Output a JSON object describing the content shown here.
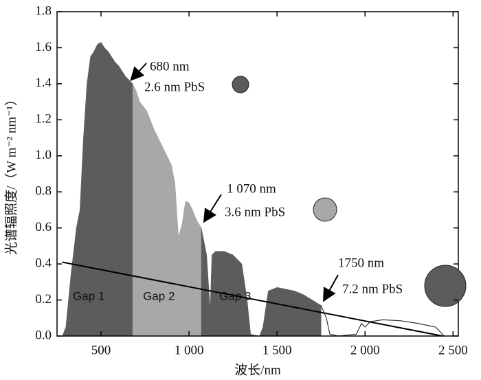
{
  "chart_data": {
    "type": "area",
    "xlabel": "波长/nm",
    "ylabel": "光谱辐照度/（W m⁻² nm⁻¹）",
    "xlim": [
      250,
      2530
    ],
    "ylim": [
      0,
      1.8
    ],
    "xticks": [
      500,
      {
        "value": 1000,
        "label": "1 000"
      },
      {
        "value": 1500,
        "label": "1 500"
      },
      {
        "value": 2000,
        "label": "2 000"
      },
      {
        "value": 2500,
        "label": "2 500"
      }
    ],
    "yticks": [
      {
        "value": 0,
        "label": "0.0"
      },
      0.2,
      0.4,
      0.6,
      0.8,
      {
        "value": 1,
        "label": "1.0"
      },
      1.2,
      1.4,
      1.6,
      1.8
    ],
    "series": [
      {
        "name": "Gap 1",
        "color": "#5c5c5c",
        "x": [
          280,
          300,
          330,
          360,
          380,
          400,
          420,
          440,
          460,
          480,
          500,
          520,
          540,
          560,
          580,
          600,
          620,
          640,
          660,
          680
        ],
        "values": [
          0,
          0.05,
          0.35,
          0.6,
          0.7,
          1.1,
          1.4,
          1.55,
          1.58,
          1.62,
          1.63,
          1.6,
          1.58,
          1.55,
          1.52,
          1.5,
          1.47,
          1.44,
          1.42,
          1.4
        ]
      },
      {
        "name": "Gap 2",
        "color": "#a8a8a8",
        "x": [
          680,
          700,
          720,
          760,
          800,
          850,
          900,
          920,
          940,
          960,
          980,
          1000,
          1020,
          1040,
          1070
        ],
        "values": [
          1.4,
          1.36,
          1.3,
          1.25,
          1.15,
          1.05,
          0.95,
          0.85,
          0.55,
          0.62,
          0.75,
          0.74,
          0.7,
          0.65,
          0.6
        ]
      },
      {
        "name": "Gap 3",
        "color": "#5c5c5c",
        "x": [
          1070,
          1100,
          1120,
          1130,
          1150,
          1200,
          1250,
          1300,
          1330,
          1350,
          1400,
          1420,
          1450,
          1500,
          1550,
          1600,
          1650,
          1700,
          1750
        ],
        "values": [
          0.6,
          0.45,
          0.15,
          0.45,
          0.47,
          0.47,
          0.45,
          0.4,
          0.2,
          0.01,
          0,
          0.05,
          0.25,
          0.27,
          0.26,
          0.25,
          0.23,
          0.2,
          0.17
        ]
      }
    ],
    "tail": {
      "color": "#333333",
      "x": [
        1750,
        1780,
        1800,
        1850,
        1950,
        1980,
        2000,
        2030,
        2100,
        2200,
        2300,
        2400,
        2450
      ],
      "values": [
        0.17,
        0.1,
        0.01,
        0,
        0.01,
        0.07,
        0.05,
        0.08,
        0.09,
        0.085,
        0.07,
        0.05,
        0
      ]
    },
    "line": {
      "color": "#000000",
      "x": [
        280,
        2440
      ],
      "values": [
        0.41,
        0
      ]
    },
    "annotations": [
      "680 nm",
      "2.6 nm PbS",
      "1 070 nm",
      "3.6 nm PbS",
      "1750 nm",
      "7.2 nm PbS"
    ]
  }
}
